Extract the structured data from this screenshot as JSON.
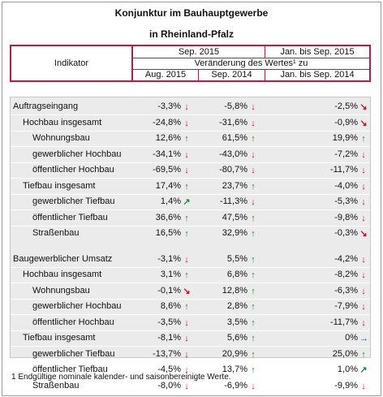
{
  "title_line1": "Konjunktur im Bauhauptgewerbe",
  "title_line2": "in Rheinland-Pfalz",
  "header": {
    "indikator": "Indikator",
    "sep2015": "Sep. 2015",
    "jan_sep2015": "Jan. bis Sep. 2015",
    "veraenderung": "Veränderung des Wertes¹ zu",
    "aug2015": "Aug. 2015",
    "sep2014": "Sep. 2014",
    "jan_sep2014": "Jan. bis Sep. 2014"
  },
  "arrow_colors": {
    "up": "#1e8a3c",
    "down": "#c8102e",
    "flat": "#1f4f8f"
  },
  "rows": [
    {
      "label": "Auftragseingang",
      "c1": "-3,3%",
      "a1": "down",
      "c2": "-5,8%",
      "a2": "down",
      "c3": "-2,5%",
      "a3": "down-right",
      "level": 0,
      "section_top": true
    },
    {
      "label": "Hochbau insgesamt",
      "c1": "-24,8%",
      "a1": "down",
      "c2": "-31,6%",
      "a2": "down",
      "c3": "-0,9%",
      "a3": "down-right",
      "level": 1
    },
    {
      "label": "Wohnungsbau",
      "c1": "12,6%",
      "a1": "up",
      "c2": "61,5%",
      "a2": "up",
      "c3": "19,9%",
      "a3": "up",
      "level": 2
    },
    {
      "label": "gewerblicher Hochbau",
      "c1": "-34,1%",
      "a1": "down",
      "c2": "-43,0%",
      "a2": "down",
      "c3": "-7,2%",
      "a3": "down",
      "level": 2
    },
    {
      "label": "öffentlicher Hochbau",
      "c1": "-69,5%",
      "a1": "down",
      "c2": "-80,7%",
      "a2": "down",
      "c3": "-11,7%",
      "a3": "down",
      "level": 2
    },
    {
      "label": "Tiefbau insgesamt",
      "c1": "17,4%",
      "a1": "up",
      "c2": "23,7%",
      "a2": "up",
      "c3": "-4,0%",
      "a3": "down",
      "level": 1
    },
    {
      "label": "gewerblicher Tiefbau",
      "c1": "1,4%",
      "a1": "up-right",
      "c2": "-11,3%",
      "a2": "down",
      "c3": "-5,3%",
      "a3": "down",
      "level": 2
    },
    {
      "label": "öffentlicher Tiefbau",
      "c1": "36,6%",
      "a1": "up",
      "c2": "47,5%",
      "a2": "up",
      "c3": "-9,8%",
      "a3": "down",
      "level": 2
    },
    {
      "label": "Straßenbau",
      "c1": "16,5%",
      "a1": "up",
      "c2": "32,9%",
      "a2": "up",
      "c3": "-0,3%",
      "a3": "down-right",
      "level": 2
    },
    {
      "label": "Baugewerblicher Umsatz",
      "c1": "-3,1%",
      "a1": "down",
      "c2": "5,5%",
      "a2": "up",
      "c3": "-4,2%",
      "a3": "down",
      "level": 0,
      "section_top": true
    },
    {
      "label": "Hochbau insgesamt",
      "c1": "3,1%",
      "a1": "up",
      "c2": "6,8%",
      "a2": "up",
      "c3": "-8,2%",
      "a3": "down",
      "level": 1
    },
    {
      "label": "Wohnungsbau",
      "c1": "-0,1%",
      "a1": "down-right",
      "c2": "12,8%",
      "a2": "up",
      "c3": "-6,3%",
      "a3": "down",
      "level": 2
    },
    {
      "label": "gewerblicher Hochbau",
      "c1": "8,6%",
      "a1": "up",
      "c2": "2,8%",
      "a2": "up",
      "c3": "-7,9%",
      "a3": "down",
      "level": 2
    },
    {
      "label": "öffentlicher Hochbau",
      "c1": "-3,5%",
      "a1": "down",
      "c2": "3,5%",
      "a2": "up",
      "c3": "-11,7%",
      "a3": "down",
      "level": 2
    },
    {
      "label": "Tiefbau insgesamt",
      "c1": "-8,1%",
      "a1": "down",
      "c2": "5,6%",
      "a2": "up",
      "c3": "0%",
      "a3": "right",
      "level": 1
    },
    {
      "label": "gewerblicher Tiefbau",
      "c1": "-13,7%",
      "a1": "down",
      "c2": "20,9%",
      "a2": "up",
      "c3": "25,0%",
      "a3": "up",
      "level": 2
    },
    {
      "label": "öffentlicher Tiefbau",
      "c1": "-4,5%",
      "a1": "down",
      "c2": "13,7%",
      "a2": "up",
      "c3": "1,0%",
      "a3": "up-right",
      "level": 2
    },
    {
      "label": "Straßenbau",
      "c1": "-8,0%",
      "a1": "down",
      "c2": "-6,9%",
      "a2": "down",
      "c3": "-9,9%",
      "a3": "down",
      "level": 2
    }
  ],
  "footnote": "1 Endgültige nominale kalender- und saisonbereinigte Werte."
}
